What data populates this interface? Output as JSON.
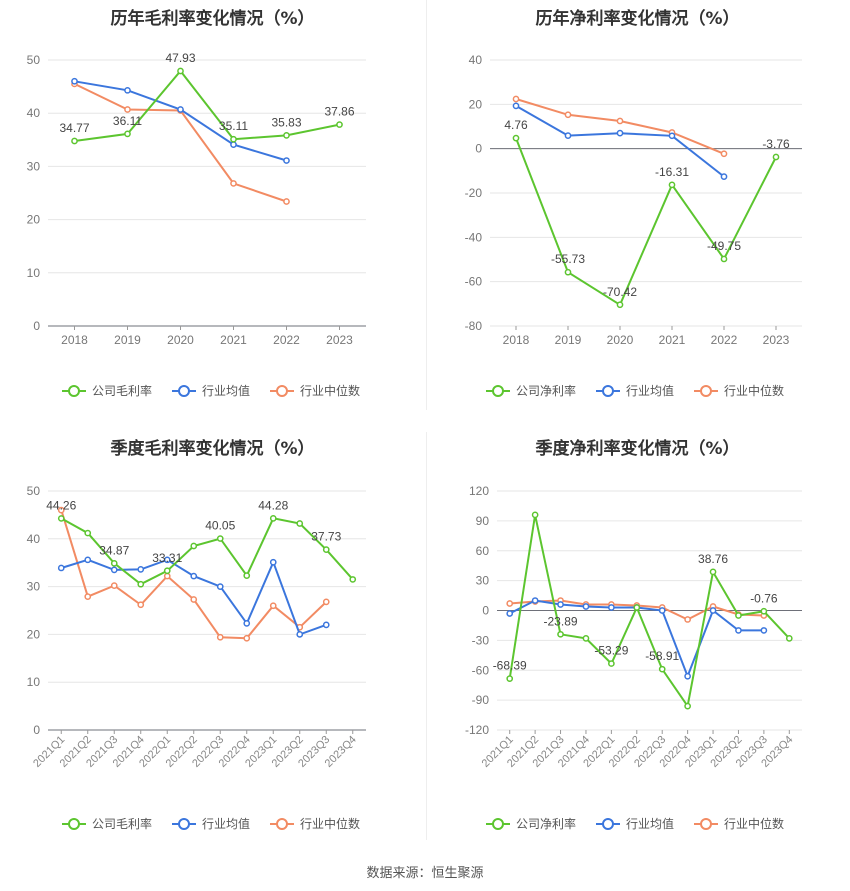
{
  "source_label": "数据来源：恒生聚源",
  "colors": {
    "company": "#5cc52f",
    "industry_avg": "#3b76dd",
    "industry_median": "#f28b63"
  },
  "chart_data": [
    {
      "type": "line",
      "title": "历年毛利率变化情况（%）",
      "categories": [
        "2018",
        "2019",
        "2020",
        "2021",
        "2022",
        "2023"
      ],
      "yticks": [
        0,
        10,
        20,
        30,
        40,
        50
      ],
      "ylim": [
        0,
        50
      ],
      "series": [
        {
          "name": "公司毛利率",
          "color": "#5cc52f",
          "values": [
            34.77,
            36.11,
            47.93,
            35.11,
            35.83,
            37.86
          ],
          "labels": [
            "34.77",
            "36.11",
            "47.93",
            "35.11",
            "35.83",
            "37.86"
          ]
        },
        {
          "name": "行业均值",
          "color": "#3b76dd",
          "values": [
            46.0,
            44.3,
            40.7,
            34.1,
            31.1,
            null
          ]
        },
        {
          "name": "行业中位数",
          "color": "#f28b63",
          "values": [
            45.5,
            40.7,
            40.5,
            26.8,
            23.4,
            null
          ]
        }
      ]
    },
    {
      "type": "line",
      "title": "历年净利率变化情况（%）",
      "categories": [
        "2018",
        "2019",
        "2020",
        "2021",
        "2022",
        "2023"
      ],
      "yticks": [
        -80,
        -60,
        -40,
        -20,
        0,
        20,
        40
      ],
      "ylim": [
        -80,
        40
      ],
      "series": [
        {
          "name": "公司净利率",
          "color": "#5cc52f",
          "values": [
            4.76,
            -55.73,
            -70.42,
            -16.31,
            -49.75,
            -3.76
          ],
          "labels": [
            "4.76",
            "-55.73",
            "-70.42",
            "-16.31",
            "-49.75",
            "-3.76"
          ]
        },
        {
          "name": "行业均值",
          "color": "#3b76dd",
          "values": [
            19.3,
            5.9,
            7.0,
            5.8,
            -12.6,
            null
          ]
        },
        {
          "name": "行业中位数",
          "color": "#f28b63",
          "values": [
            22.4,
            15.3,
            12.5,
            7.3,
            -2.3,
            null
          ]
        }
      ]
    },
    {
      "type": "line",
      "title": "季度毛利率变化情况（%）",
      "categories": [
        "2021Q1",
        "2021Q2",
        "2021Q3",
        "2021Q4",
        "2022Q1",
        "2022Q2",
        "2022Q3",
        "2022Q4",
        "2023Q1",
        "2023Q2",
        "2023Q3",
        "2023Q4"
      ],
      "yticks": [
        0,
        10,
        20,
        30,
        40,
        50
      ],
      "ylim": [
        0,
        50
      ],
      "series": [
        {
          "name": "公司毛利率",
          "color": "#5cc52f",
          "values": [
            44.26,
            41.2,
            34.87,
            30.5,
            33.31,
            38.5,
            40.05,
            32.3,
            44.28,
            43.2,
            37.73,
            31.5
          ],
          "labels": [
            "44.26",
            "",
            "34.87",
            "",
            "33.31",
            "",
            "40.05",
            "",
            "44.28",
            "",
            "37.73",
            ""
          ]
        },
        {
          "name": "行业均值",
          "color": "#3b76dd",
          "values": [
            33.9,
            35.6,
            33.5,
            33.6,
            35.6,
            32.2,
            30.0,
            22.3,
            35.1,
            20.0,
            22.0,
            null
          ]
        },
        {
          "name": "行业中位数",
          "color": "#f28b63",
          "values": [
            46.0,
            27.9,
            30.2,
            26.2,
            32.2,
            27.3,
            19.4,
            19.2,
            26.0,
            21.5,
            26.8,
            null
          ]
        }
      ]
    },
    {
      "type": "line",
      "title": "季度净利率变化情况（%）",
      "categories": [
        "2021Q1",
        "2021Q2",
        "2021Q3",
        "2021Q4",
        "2022Q1",
        "2022Q2",
        "2022Q3",
        "2022Q4",
        "2023Q1",
        "2023Q2",
        "2023Q3",
        "2023Q4"
      ],
      "yticks": [
        -120,
        -90,
        -60,
        -30,
        0,
        30,
        60,
        90,
        120
      ],
      "ylim": [
        -120,
        120
      ],
      "series": [
        {
          "name": "公司净利率",
          "color": "#5cc52f",
          "values": [
            -68.39,
            96,
            -23.89,
            -28,
            -53.29,
            3,
            -58.91,
            -96,
            38.76,
            -5,
            -0.76,
            -28
          ],
          "labels": [
            "-68.39",
            "",
            "-23.89",
            "",
            "-53.29",
            "",
            "-58.91",
            "",
            "38.76",
            "",
            "-0.76",
            ""
          ]
        },
        {
          "name": "行业均值",
          "color": "#3b76dd",
          "values": [
            -3,
            10,
            6,
            4,
            3,
            3,
            0,
            -66,
            0,
            -20,
            -20,
            null
          ]
        },
        {
          "name": "行业中位数",
          "color": "#f28b63",
          "values": [
            7,
            9,
            10,
            6,
            6,
            5,
            3,
            -9,
            4,
            -4,
            -5,
            null
          ]
        }
      ]
    }
  ]
}
